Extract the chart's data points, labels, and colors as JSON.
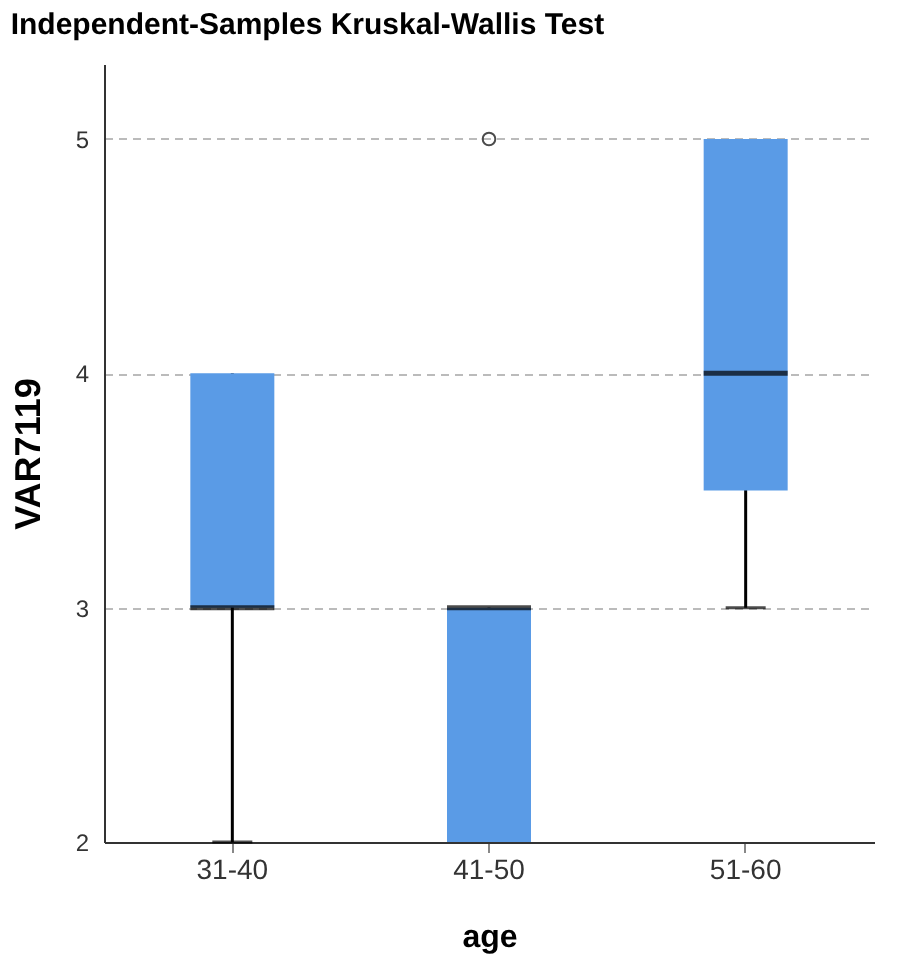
{
  "chart_data": {
    "type": "box",
    "title": "Independent-Samples Kruskal-Wallis Test",
    "xlabel": "age",
    "ylabel": "VAR7119",
    "categories": [
      "31-40",
      "41-50",
      "51-60"
    ],
    "series": [
      {
        "color": "#5a9be6",
        "boxes": [
          {
            "low": 2,
            "q1": 3,
            "median": 3,
            "q3": 4,
            "high": 4
          },
          {
            "low": 2,
            "q1": 2,
            "median": 3,
            "q3": 3,
            "high": 3,
            "outliers": [
              5
            ]
          },
          {
            "low": 3,
            "q1": 3.5,
            "median": 4,
            "q3": 5,
            "high": 5
          }
        ]
      }
    ],
    "ylim": [
      2,
      5.32
    ],
    "yticks": [
      2,
      3,
      4,
      5
    ],
    "grid": "y"
  }
}
